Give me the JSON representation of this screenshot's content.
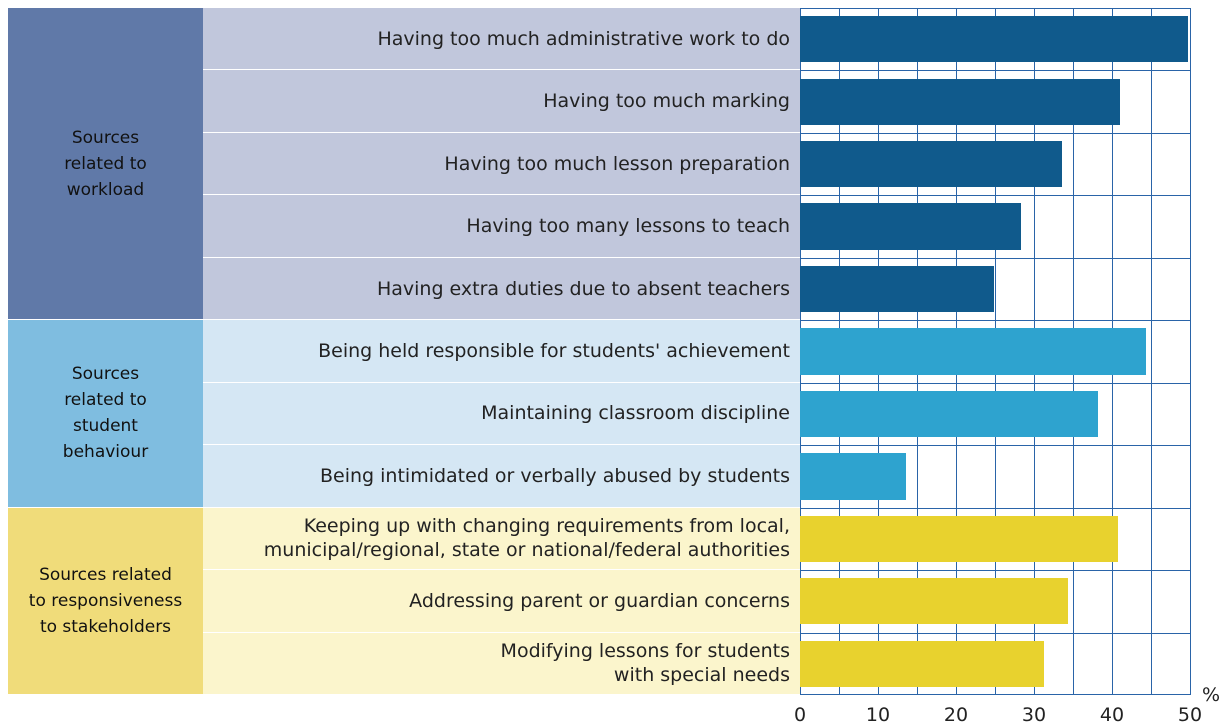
{
  "chart_data": {
    "type": "bar",
    "orientation": "horizontal",
    "groups": [
      {
        "name": "Sources\nrelated to\nworkload",
        "group_color": "#6079a8",
        "label_color": "#c1c7dc",
        "color": "#105a8c",
        "categories": [
          "Having too much administrative work to do",
          "Having too much marking",
          "Having too much lesson preparation",
          "Having too many lessons to teach",
          "Having extra duties due to absent teachers"
        ],
        "values": [
          49.7,
          41.0,
          33.6,
          28.3,
          24.9
        ]
      },
      {
        "name": "Sources\nrelated to\nstudent\nbehaviour",
        "group_color": "#7fbde0",
        "label_color": "#d5e7f4",
        "color": "#2ea3cf",
        "categories": [
          "Being held responsible for students' achievement",
          "Maintaining classroom discipline",
          "Being intimidated or verbally abused by students"
        ],
        "values": [
          44.4,
          38.2,
          13.6
        ]
      },
      {
        "name": "Sources related\nto responsiveness\nto stakeholders",
        "group_color": "#f0dc7a",
        "label_color": "#fbf5cc",
        "color": "#e8d22e",
        "categories": [
          "Keeping up with changing requirements from local,\nmunicipal/regional, state or national/federal authorities",
          "Addressing parent or guardian concerns",
          "Modifying lessons for students\nwith special needs"
        ],
        "values": [
          40.8,
          34.4,
          31.3
        ]
      }
    ],
    "xlim": [
      0,
      50
    ],
    "xticks": [
      0,
      10,
      20,
      30,
      40,
      50
    ],
    "xminor": [
      5,
      15,
      25,
      35,
      45
    ],
    "unit": "%",
    "grid": true,
    "grid_color": "#2a64a8"
  }
}
